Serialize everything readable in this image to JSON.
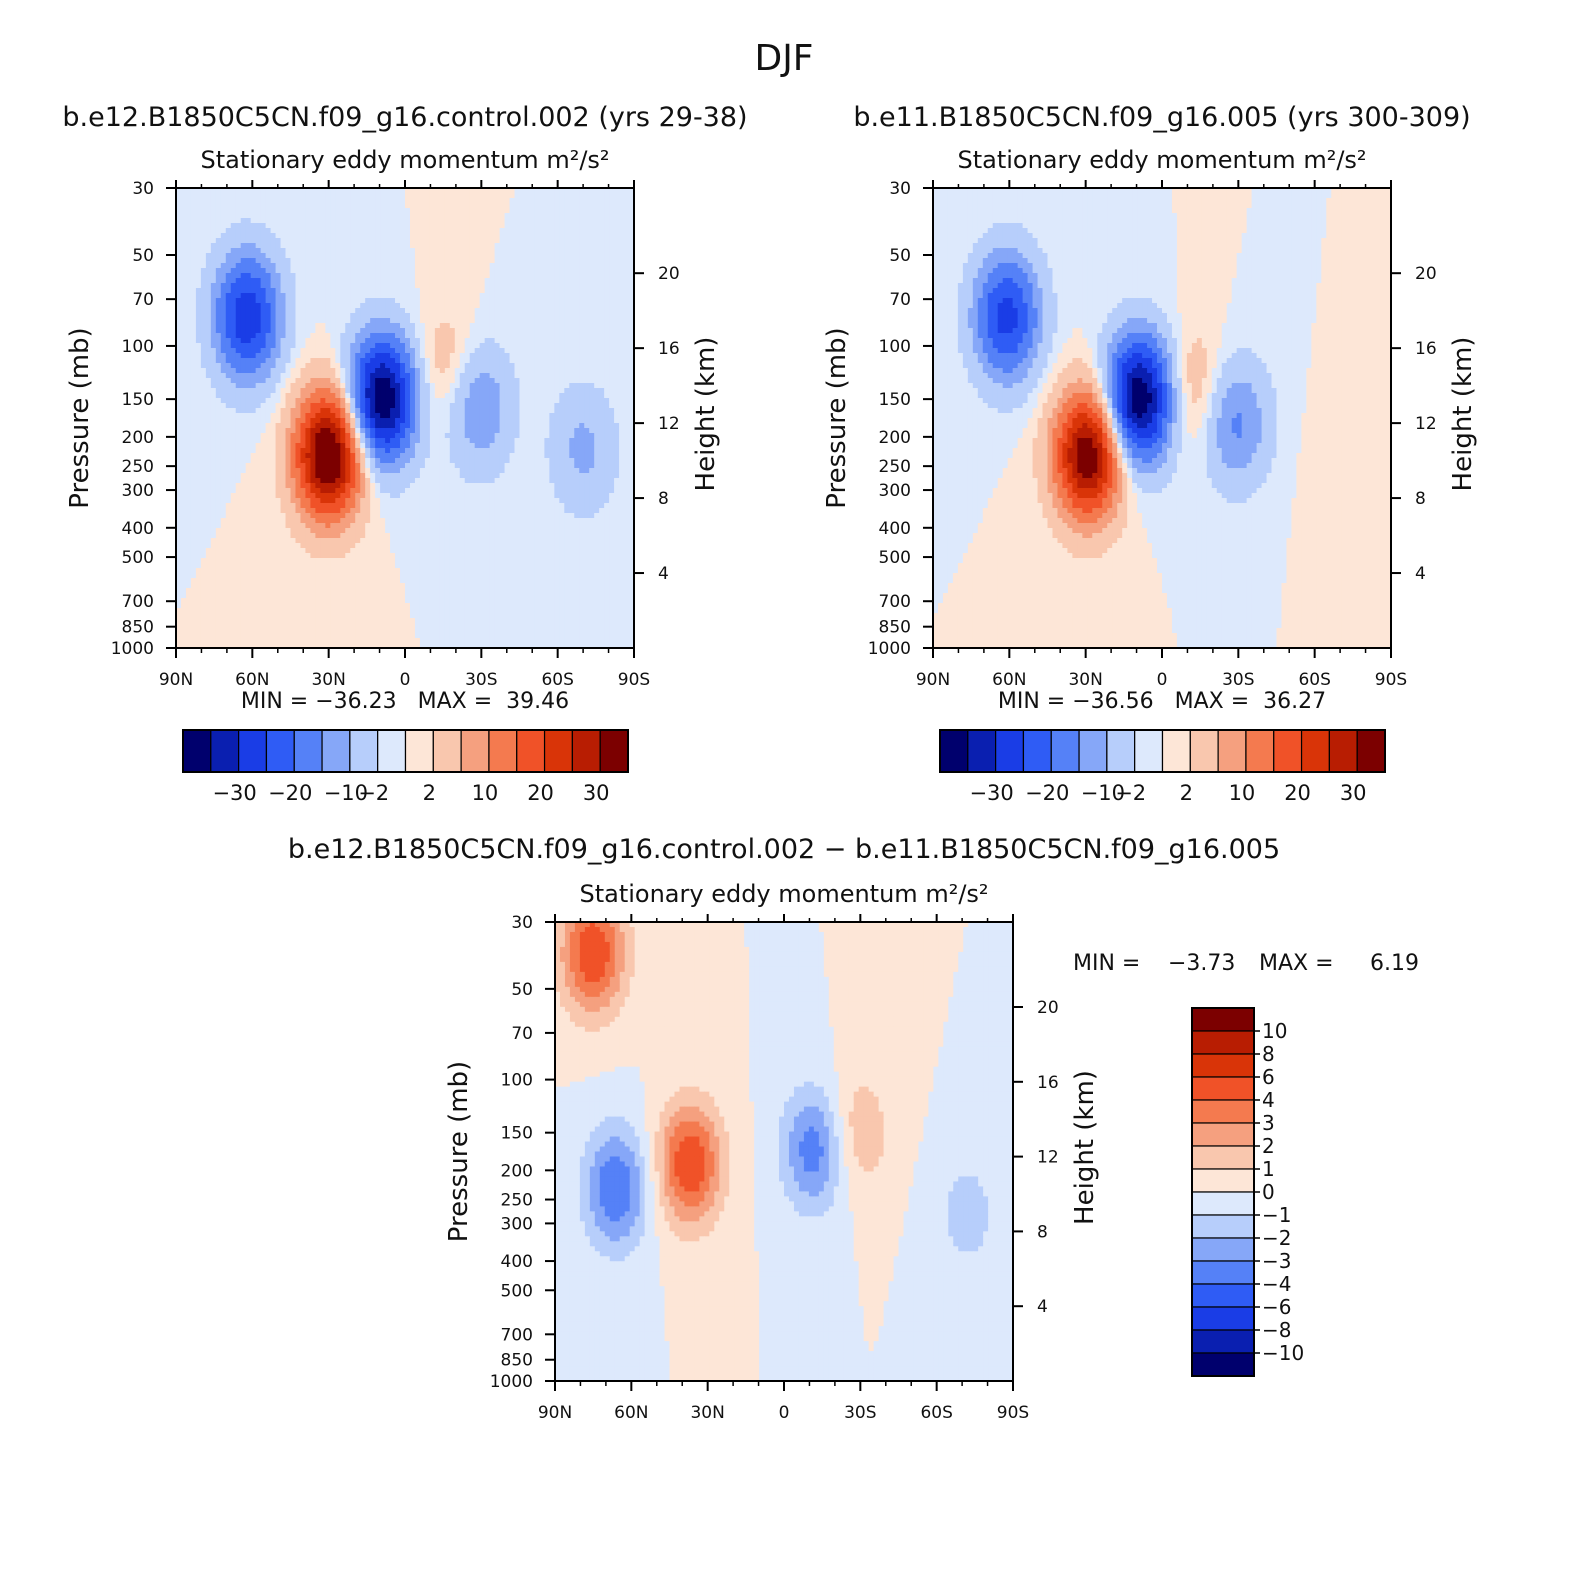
{
  "figure_title": "DJF",
  "chart_data": [
    {
      "type": "heatmap",
      "case_title": "b.e12.B1850C5CN.f09_g16.control.002 (yrs 29-38)",
      "title": "Stationary eddy momentum",
      "units": "m²/s²",
      "ylabel": "Pressure (mb)",
      "ylabel_right": "Height (km)",
      "x_ticks": [
        "90N",
        "60N",
        "30N",
        "0",
        "30S",
        "60S",
        "90S"
      ],
      "y_ticks": [
        30,
        50,
        70,
        100,
        150,
        200,
        250,
        300,
        400,
        500,
        700,
        850,
        1000
      ],
      "y_right_ticks": [
        20,
        16,
        12,
        8,
        4
      ],
      "ylim": [
        1000,
        30
      ],
      "y_scale": "log",
      "stats": "MIN = -36.23   MAX =  39.46",
      "min": -36.23,
      "max": 39.46,
      "contour_levels": [
        -35,
        -30,
        -25,
        -20,
        -15,
        -10,
        -6,
        -2,
        0,
        2,
        6,
        10,
        15,
        20,
        25,
        30,
        35
      ],
      "colorbar_labels": [
        "-30",
        "-20",
        "-10",
        "-2",
        "2",
        "10",
        "20",
        "30"
      ],
      "colorbar_orientation": "horizontal",
      "colorbar_colors": [
        "#00006d",
        "#0a1fb0",
        "#1a3de6",
        "#2f5cf5",
        "#5581f7",
        "#86a7f8",
        "#b7cefb",
        "#dde9fc",
        "#fde6d7",
        "#f9c7ae",
        "#f5a07f",
        "#f47a4f",
        "#f05228",
        "#d93408",
        "#b81d02",
        "#7c0000"
      ],
      "features": [
        {
          "lat": 62,
          "p": 80,
          "value": -24
        },
        {
          "lat": 30,
          "p": 230,
          "value": 38
        },
        {
          "lat": 9,
          "p": 150,
          "value": -35
        },
        {
          "lat": -16,
          "p": 120,
          "value": 5
        },
        {
          "lat": -29,
          "p": 160,
          "value": -10
        },
        {
          "lat": -70,
          "p": 220,
          "value": -7
        }
      ]
    },
    {
      "type": "heatmap",
      "case_title": "b.e11.B1850C5CN.f09_g16.005 (yrs 300-309)",
      "title": "Stationary eddy momentum",
      "units": "m²/s²",
      "ylabel": "Pressure (mb)",
      "ylabel_right": "Height (km)",
      "x_ticks": [
        "90N",
        "60N",
        "30N",
        "0",
        "30S",
        "60S",
        "90S"
      ],
      "y_ticks": [
        30,
        50,
        70,
        100,
        150,
        200,
        250,
        300,
        400,
        500,
        700,
        850,
        1000
      ],
      "y_right_ticks": [
        20,
        16,
        12,
        8,
        4
      ],
      "ylim": [
        1000,
        30
      ],
      "y_scale": "log",
      "stats": "MIN = -36.56   MAX =  36.27",
      "min": -36.56,
      "max": 36.27,
      "contour_levels": [
        -35,
        -30,
        -25,
        -20,
        -15,
        -10,
        -6,
        -2,
        0,
        2,
        6,
        10,
        15,
        20,
        25,
        30,
        35
      ],
      "colorbar_labels": [
        "-30",
        "-20",
        "-10",
        "-2",
        "2",
        "10",
        "20",
        "30"
      ],
      "colorbar_orientation": "horizontal",
      "colorbar_colors": [
        "#00006d",
        "#0a1fb0",
        "#1a3de6",
        "#2f5cf5",
        "#5581f7",
        "#86a7f8",
        "#b7cefb",
        "#dde9fc",
        "#fde6d7",
        "#f9c7ae",
        "#f5a07f",
        "#f47a4f",
        "#f05228",
        "#d93408",
        "#b81d02",
        "#7c0000"
      ],
      "features": [
        {
          "lat": 61,
          "p": 80,
          "value": -22
        },
        {
          "lat": 29,
          "p": 230,
          "value": 35
        },
        {
          "lat": 9,
          "p": 150,
          "value": -35
        },
        {
          "lat": -12,
          "p": 140,
          "value": 6
        },
        {
          "lat": -29,
          "p": 180,
          "value": -11
        },
        {
          "lat": -70,
          "p": 250,
          "value": 1
        }
      ]
    },
    {
      "type": "heatmap",
      "case_title": "b.e12.B1850C5CN.f09_g16.control.002 - b.e11.B1850C5CN.f09_g16.005",
      "title": "Stationary eddy momentum",
      "units": "m²/s²",
      "ylabel": "Pressure (mb)",
      "ylabel_right": "Height (km)",
      "x_ticks": [
        "90N",
        "60N",
        "30N",
        "0",
        "30S",
        "60S",
        "90S"
      ],
      "y_ticks": [
        30,
        50,
        70,
        100,
        150,
        200,
        250,
        300,
        400,
        500,
        700,
        850,
        1000
      ],
      "y_right_ticks": [
        20,
        16,
        12,
        8,
        4
      ],
      "ylim": [
        1000,
        30
      ],
      "y_scale": "log",
      "stats_min_label": "MIN =",
      "stats_min_value": "-3.73",
      "stats_max_label": "MAX =",
      "stats_max_value": "6.19",
      "min": -3.73,
      "max": 6.19,
      "contour_levels": [
        -12,
        -10,
        -8,
        -6,
        -4,
        -3,
        -2,
        -1,
        0,
        1,
        2,
        3,
        4,
        6,
        8,
        10,
        12
      ],
      "colorbar_labels": [
        "10",
        "8",
        "6",
        "4",
        "3",
        "2",
        "1",
        "0",
        "-1",
        "-2",
        "-3",
        "-4",
        "-6",
        "-8",
        "-10"
      ],
      "colorbar_orientation": "vertical",
      "colorbar_colors": [
        "#7c0000",
        "#b81d02",
        "#d93408",
        "#f05228",
        "#f47a4f",
        "#f5a07f",
        "#f9c7ae",
        "#fde6d7",
        "#dde9fc",
        "#b7cefb",
        "#86a7f8",
        "#5581f7",
        "#2f5cf5",
        "#1a3de6",
        "#0a1fb0",
        "#00006d"
      ],
      "features": [
        {
          "lat": 75,
          "p": 38,
          "value": 5
        },
        {
          "lat": 66,
          "p": 230,
          "value": -4
        },
        {
          "lat": 37,
          "p": 190,
          "value": 5
        },
        {
          "lat": -12,
          "p": 170,
          "value": -3.7
        },
        {
          "lat": -29,
          "p": 150,
          "value": 2
        },
        {
          "lat": -72,
          "p": 280,
          "value": -1.5
        }
      ]
    }
  ]
}
